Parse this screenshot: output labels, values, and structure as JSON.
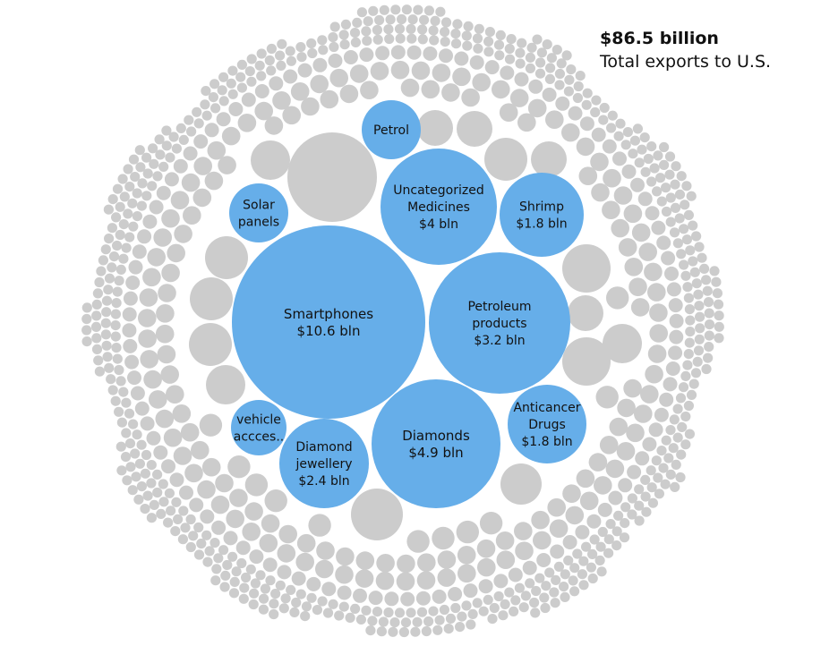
{
  "header": {
    "total_value": "$86.5 billion",
    "total_label": "Total exports to U.S."
  },
  "colors": {
    "highlight": "#66aee9",
    "other": "#cccccc",
    "background": "#ffffff",
    "text": "#111111"
  },
  "chart_data": {
    "type": "bubble",
    "title": "",
    "total": {
      "value_bln": 86.5,
      "display": "$86.5 billion"
    },
    "highlighted": [
      {
        "id": "smartphones",
        "lines": [
          "Smartphones",
          "$10.6 bln"
        ],
        "value_bln": 10.6
      },
      {
        "id": "diamonds",
        "lines": [
          "Diamonds",
          "$4.9 bln"
        ],
        "value_bln": 4.9
      },
      {
        "id": "uncategorized-medicines",
        "lines": [
          "Uncategorized",
          "Medicines",
          "$4 bln"
        ],
        "value_bln": 4.0
      },
      {
        "id": "petroleum-products",
        "lines": [
          "Petroleum",
          "products",
          "$3.2 bln"
        ],
        "value_bln": 3.2
      },
      {
        "id": "diamond-jewellery",
        "lines": [
          "Diamond",
          "jewellery",
          "$2.4 bln"
        ],
        "value_bln": 2.4
      },
      {
        "id": "shrimp",
        "lines": [
          "Shrimp",
          "$1.8 bln"
        ],
        "value_bln": 1.8
      },
      {
        "id": "anticancer-drugs",
        "lines": [
          "Anticancer",
          "Drugs",
          "$1.8 bln"
        ],
        "value_bln": 1.8
      },
      {
        "id": "solar-panels",
        "lines": [
          "Solar",
          "panels"
        ],
        "value_bln": null
      },
      {
        "id": "vehicle-accessories",
        "lines": [
          "vehicle",
          "accces.."
        ],
        "value_bln": null
      },
      {
        "id": "petrol",
        "lines": [
          "Petrol"
        ],
        "value_bln": null
      }
    ],
    "other_bubbles": {
      "approx_count": 1000,
      "color": "#cccccc"
    }
  }
}
